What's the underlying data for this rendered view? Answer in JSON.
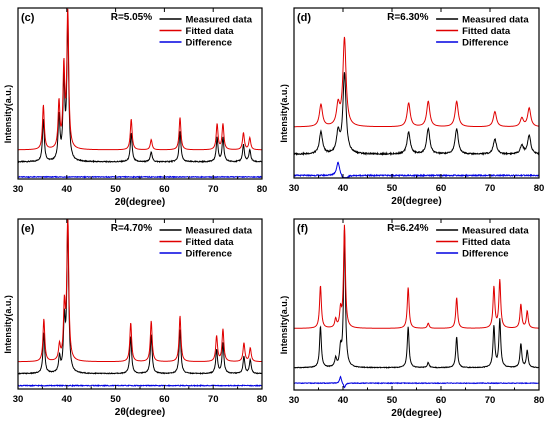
{
  "figure": {
    "panels": [
      {
        "label": "(c)",
        "rtext": "R=5.05%"
      },
      {
        "label": "(d)",
        "rtext": "R=6.30%"
      },
      {
        "label": "(e)",
        "rtext": "R=4.70%"
      },
      {
        "label": "(f)",
        "rtext": "R=6.24%"
      }
    ]
  },
  "colors": {
    "measured": "#000000",
    "fitted": "#e00000",
    "difference": "#0000e0"
  },
  "chart_data": [
    {
      "type": "line",
      "label": "(c)",
      "annotation": "R=5.05%",
      "xlabel": "2θ(degree)",
      "ylabel": "Intensity(a.u.)",
      "xlim": [
        30,
        80
      ],
      "xticks": [
        30,
        40,
        50,
        60,
        70,
        80
      ],
      "legend_position": "top-right",
      "y_ticks_shown": false,
      "series": [
        {
          "name": "Measured data",
          "baseline": 0.1,
          "noise": 0.006
        },
        {
          "name": "Fitted data",
          "baseline": 0.17,
          "noise": 0.0
        },
        {
          "name": "Difference",
          "baseline": 0.012,
          "noise": 0.005
        }
      ],
      "peaks": [
        {
          "x": 35.2,
          "measured": 0.25,
          "fitted": 0.26,
          "diff": 0.0
        },
        {
          "x": 38.4,
          "measured": 0.26,
          "fitted": 0.27,
          "diff": 0.0
        },
        {
          "x": 39.4,
          "measured": 0.46,
          "fitted": 0.47,
          "diff": 0.0
        },
        {
          "x": 40.2,
          "measured": 0.82,
          "fitted": 0.83,
          "diff": 0.0
        },
        {
          "x": 53.2,
          "measured": 0.17,
          "fitted": 0.18,
          "diff": 0.0
        },
        {
          "x": 57.3,
          "measured": 0.06,
          "fitted": 0.06,
          "diff": 0.0
        },
        {
          "x": 63.2,
          "measured": 0.18,
          "fitted": 0.19,
          "diff": 0.0
        },
        {
          "x": 70.8,
          "measured": 0.14,
          "fitted": 0.15,
          "diff": 0.0
        },
        {
          "x": 72.0,
          "measured": 0.14,
          "fitted": 0.15,
          "diff": 0.0
        },
        {
          "x": 76.2,
          "measured": 0.1,
          "fitted": 0.1,
          "diff": 0.0
        },
        {
          "x": 77.5,
          "measured": 0.07,
          "fitted": 0.07,
          "diff": 0.0
        }
      ]
    },
    {
      "type": "line",
      "label": "(d)",
      "annotation": "R=6.30%",
      "xlabel": "2θ(degree)",
      "ylabel": "Intensity(a.u.)",
      "xlim": [
        30,
        80
      ],
      "xticks": [
        30,
        40,
        50,
        60,
        70,
        80
      ],
      "legend_position": "top-right",
      "y_ticks_shown": false,
      "series": [
        {
          "name": "Measured data",
          "baseline": 0.14,
          "noise": 0.008
        },
        {
          "name": "Fitted data",
          "baseline": 0.3,
          "noise": 0.0
        },
        {
          "name": "Difference",
          "baseline": 0.015,
          "noise": 0.007
        }
      ],
      "peaks": [
        {
          "x": 35.5,
          "measured": 0.13,
          "fitted": 0.13,
          "diff": 0.0
        },
        {
          "x": 39.0,
          "measured": 0.12,
          "fitted": 0.12,
          "diff": 0.08
        },
        {
          "x": 40.3,
          "measured": 0.47,
          "fitted": 0.52,
          "diff": -0.05
        },
        {
          "x": 53.4,
          "measured": 0.13,
          "fitted": 0.14,
          "diff": 0.0
        },
        {
          "x": 57.4,
          "measured": 0.15,
          "fitted": 0.15,
          "diff": 0.0
        },
        {
          "x": 63.2,
          "measured": 0.15,
          "fitted": 0.15,
          "diff": 0.0
        },
        {
          "x": 71.0,
          "measured": 0.09,
          "fitted": 0.09,
          "diff": 0.0
        },
        {
          "x": 76.5,
          "measured": 0.05,
          "fitted": 0.05,
          "diff": 0.0
        },
        {
          "x": 78.0,
          "measured": 0.11,
          "fitted": 0.11,
          "diff": 0.0
        }
      ]
    },
    {
      "type": "line",
      "label": "(e)",
      "annotation": "R=4.70%",
      "xlabel": "2θ(degree)",
      "ylabel": "Intensity(a.u.)",
      "xlim": [
        30,
        80
      ],
      "xticks": [
        30,
        40,
        50,
        60,
        70,
        80
      ],
      "legend_position": "top-right",
      "y_ticks_shown": false,
      "series": [
        {
          "name": "Measured data",
          "baseline": 0.09,
          "noise": 0.005
        },
        {
          "name": "Fitted data",
          "baseline": 0.16,
          "noise": 0.0
        },
        {
          "name": "Difference",
          "baseline": 0.02,
          "noise": 0.005
        }
      ],
      "peaks": [
        {
          "x": 35.3,
          "measured": 0.24,
          "fitted": 0.25,
          "diff": 0.0
        },
        {
          "x": 38.5,
          "measured": 0.09,
          "fitted": 0.09,
          "diff": 0.0
        },
        {
          "x": 39.5,
          "measured": 0.3,
          "fitted": 0.31,
          "diff": 0.0
        },
        {
          "x": 40.2,
          "measured": 0.88,
          "fitted": 0.89,
          "diff": 0.0
        },
        {
          "x": 53.1,
          "measured": 0.22,
          "fitted": 0.23,
          "diff": 0.0
        },
        {
          "x": 57.3,
          "measured": 0.23,
          "fitted": 0.24,
          "diff": 0.0
        },
        {
          "x": 63.2,
          "measured": 0.26,
          "fitted": 0.27,
          "diff": 0.0
        },
        {
          "x": 70.7,
          "measured": 0.14,
          "fitted": 0.15,
          "diff": 0.0
        },
        {
          "x": 72.0,
          "measured": 0.18,
          "fitted": 0.19,
          "diff": 0.0
        },
        {
          "x": 76.3,
          "measured": 0.1,
          "fitted": 0.11,
          "diff": 0.0
        },
        {
          "x": 77.6,
          "measured": 0.08,
          "fitted": 0.08,
          "diff": 0.0
        }
      ]
    },
    {
      "type": "line",
      "label": "(f)",
      "annotation": "R=6.24%",
      "xlabel": "2θ(degree)",
      "ylabel": "Intensity(a.u.)",
      "xlim": [
        30,
        80
      ],
      "xticks": [
        30,
        40,
        50,
        60,
        70,
        80
      ],
      "legend_position": "top-right",
      "y_ticks_shown": false,
      "series": [
        {
          "name": "Measured data",
          "baseline": 0.13,
          "noise": 0.004
        },
        {
          "name": "Fitted data",
          "baseline": 0.36,
          "noise": 0.0
        },
        {
          "name": "Difference",
          "baseline": 0.04,
          "noise": 0.004
        }
      ],
      "peaks": [
        {
          "x": 35.4,
          "measured": 0.24,
          "fitted": 0.25,
          "diff": 0.0
        },
        {
          "x": 38.5,
          "measured": 0.05,
          "fitted": 0.05,
          "diff": 0.0
        },
        {
          "x": 39.5,
          "measured": 0.1,
          "fitted": 0.1,
          "diff": 0.04
        },
        {
          "x": 40.3,
          "measured": 0.8,
          "fitted": 0.6,
          "diff": -0.03
        },
        {
          "x": 53.3,
          "measured": 0.24,
          "fitted": 0.24,
          "diff": 0.0
        },
        {
          "x": 57.4,
          "measured": 0.03,
          "fitted": 0.03,
          "diff": 0.0
        },
        {
          "x": 63.2,
          "measured": 0.18,
          "fitted": 0.18,
          "diff": 0.0
        },
        {
          "x": 70.8,
          "measured": 0.24,
          "fitted": 0.24,
          "diff": 0.0
        },
        {
          "x": 72.0,
          "measured": 0.28,
          "fitted": 0.28,
          "diff": 0.0
        },
        {
          "x": 76.3,
          "measured": 0.14,
          "fitted": 0.14,
          "diff": 0.0
        },
        {
          "x": 77.6,
          "measured": 0.1,
          "fitted": 0.1,
          "diff": 0.0
        }
      ]
    }
  ]
}
